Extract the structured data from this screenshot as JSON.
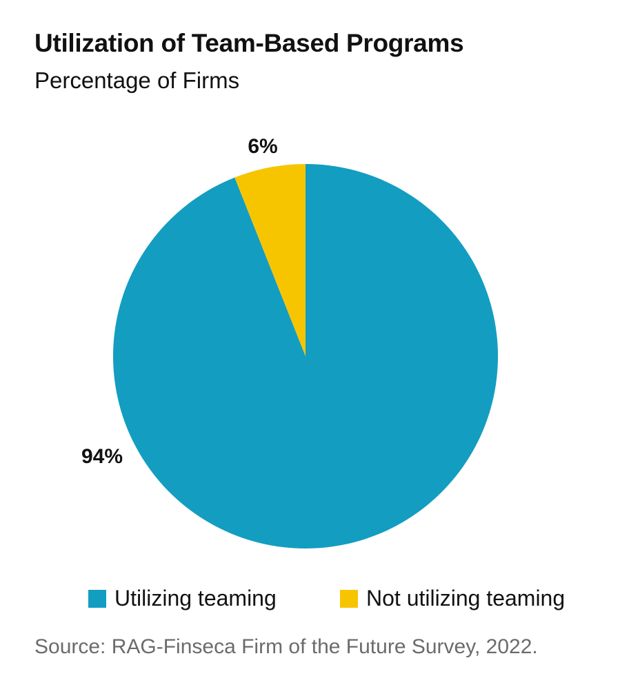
{
  "chart_data": {
    "type": "pie",
    "title": "Utilization of Team-Based Programs",
    "subtitle": "Percentage of Firms",
    "slices": [
      {
        "name": "Utilizing teaming",
        "value": 94,
        "label": "94%",
        "color": "#139DC1"
      },
      {
        "name": "Not utilizing teaming",
        "value": 6,
        "label": "6%",
        "color": "#F7C500"
      }
    ],
    "legend_position": "bottom",
    "source": "Source: RAG-Finseca Firm of the Future Survey, 2022."
  }
}
